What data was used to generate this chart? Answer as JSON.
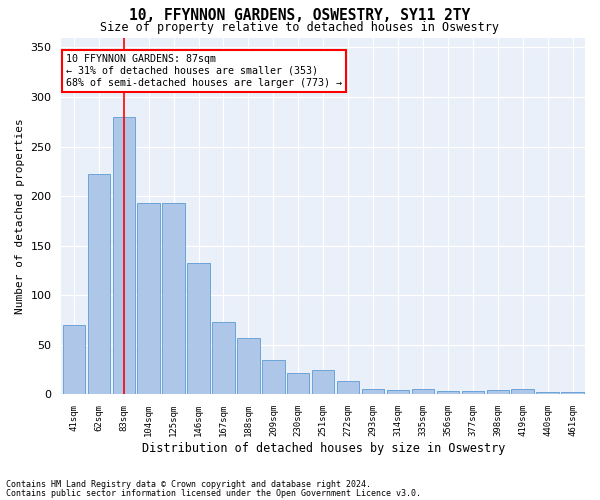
{
  "title": "10, FFYNNON GARDENS, OSWESTRY, SY11 2TY",
  "subtitle": "Size of property relative to detached houses in Oswestry",
  "xlabel": "Distribution of detached houses by size in Oswestry",
  "ylabel": "Number of detached properties",
  "categories": [
    "41sqm",
    "62sqm",
    "83sqm",
    "104sqm",
    "125sqm",
    "146sqm",
    "167sqm",
    "188sqm",
    "209sqm",
    "230sqm",
    "251sqm",
    "272sqm",
    "293sqm",
    "314sqm",
    "335sqm",
    "356sqm",
    "377sqm",
    "398sqm",
    "419sqm",
    "440sqm",
    "461sqm"
  ],
  "values": [
    70,
    222,
    280,
    193,
    193,
    133,
    73,
    57,
    35,
    22,
    25,
    14,
    6,
    5,
    6,
    3,
    4,
    5,
    6,
    2,
    2
  ],
  "bar_color": "#aec6e8",
  "bar_edge_color": "#5b9bd5",
  "background_color": "#eaf0f9",
  "grid_color": "#ffffff",
  "vline_x": 2,
  "vline_color": "red",
  "annotation_title": "10 FFYNNON GARDENS: 87sqm",
  "annotation_line1": "← 31% of detached houses are smaller (353)",
  "annotation_line2": "68% of semi-detached houses are larger (773) →",
  "annotation_box_color": "white",
  "annotation_box_edge": "red",
  "ylim": [
    0,
    360
  ],
  "yticks": [
    0,
    50,
    100,
    150,
    200,
    250,
    300,
    350
  ],
  "footer1": "Contains HM Land Registry data © Crown copyright and database right 2024.",
  "footer2": "Contains public sector information licensed under the Open Government Licence v3.0."
}
